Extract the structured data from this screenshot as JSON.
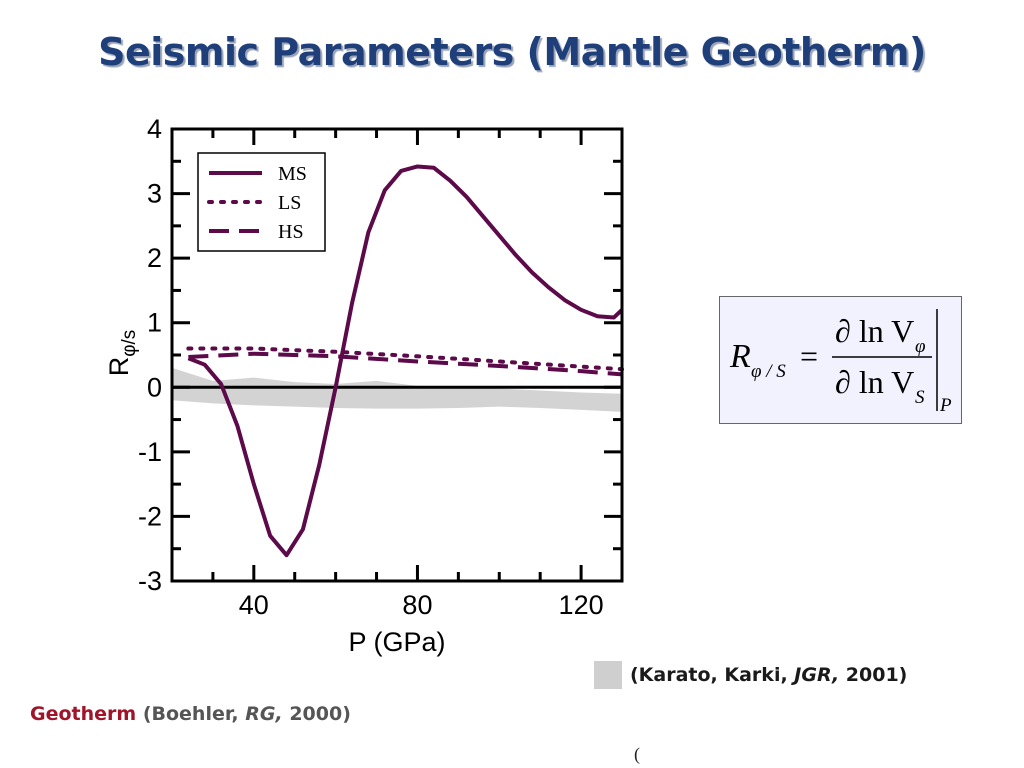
{
  "slide": {
    "title": "Seismic Parameters (Mantle Geotherm)",
    "ref_karato": {
      "open": "(Karato, Karki, ",
      "journal": "JGR,",
      "year": " 2001)"
    },
    "ref_boehler": {
      "label": "Geotherm",
      "open": " (Boehler, ",
      "journal": "RG,",
      "year": " 2000)"
    },
    "stray_char": "(",
    "equation": {
      "lhs": "R",
      "lhs_sub": "φ / S",
      "num": "∂ ln V",
      "num_sub": "φ",
      "den": "∂ ln V",
      "den_sub": "S",
      "eval_sub": "P"
    },
    "colors": {
      "title": "#1e3f7a",
      "curve": "#5c0a4a",
      "band": "#d3d3d3",
      "geotherm": "#a0142a"
    }
  },
  "chart_data": {
    "type": "line",
    "xlabel": "P (GPa)",
    "ylabel": "R",
    "ylabel_sub": "φ/s",
    "xlim": [
      20,
      130
    ],
    "ylim": [
      -3,
      4
    ],
    "xticks": [
      40,
      80,
      120
    ],
    "yticks": [
      -3,
      -2,
      -1,
      0,
      1,
      2,
      3,
      4
    ],
    "legend_position": "top-left",
    "series": [
      {
        "name": "MS",
        "style": "solid",
        "x": [
          24,
          28,
          32,
          36,
          40,
          44,
          48,
          52,
          56,
          60,
          64,
          68,
          72,
          76,
          80,
          84,
          88,
          92,
          96,
          100,
          104,
          108,
          112,
          116,
          120,
          124,
          128,
          130
        ],
        "y": [
          0.45,
          0.35,
          0.05,
          -0.6,
          -1.5,
          -2.3,
          -2.6,
          -2.2,
          -1.2,
          0.0,
          1.3,
          2.4,
          3.05,
          3.35,
          3.42,
          3.4,
          3.2,
          2.95,
          2.65,
          2.35,
          2.05,
          1.78,
          1.55,
          1.35,
          1.2,
          1.1,
          1.08,
          1.2
        ]
      },
      {
        "name": "LS",
        "style": "dotted",
        "x": [
          24,
          40,
          60,
          80,
          100,
          120,
          130
        ],
        "y": [
          0.6,
          0.6,
          0.55,
          0.48,
          0.4,
          0.32,
          0.28
        ]
      },
      {
        "name": "HS",
        "style": "dashed",
        "x": [
          24,
          40,
          60,
          80,
          100,
          120,
          130
        ],
        "y": [
          0.47,
          0.52,
          0.48,
          0.4,
          0.33,
          0.25,
          0.2
        ]
      }
    ],
    "band": {
      "x": [
        20,
        30,
        40,
        50,
        60,
        70,
        80,
        90,
        100,
        110,
        120,
        130
      ],
      "upper": [
        0.3,
        0.1,
        0.15,
        0.08,
        0.05,
        0.1,
        0.02,
        0.0,
        -0.02,
        -0.05,
        -0.08,
        -0.1
      ],
      "lower": [
        -0.2,
        -0.25,
        -0.28,
        -0.3,
        -0.32,
        -0.33,
        -0.33,
        -0.32,
        -0.3,
        -0.32,
        -0.35,
        -0.38
      ]
    }
  }
}
